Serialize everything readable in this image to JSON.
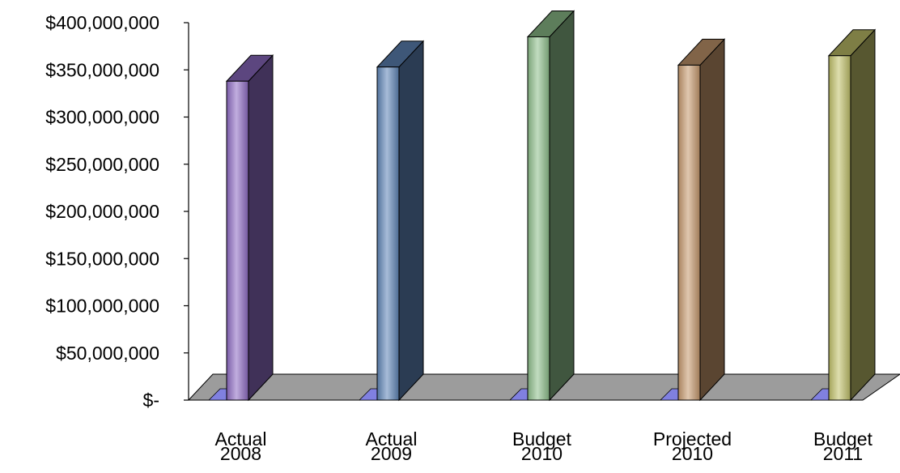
{
  "chart_data": {
    "type": "bar",
    "categories": [
      [
        "Actual",
        "2008"
      ],
      [
        "Actual",
        "2009"
      ],
      [
        "Budget",
        "2010"
      ],
      [
        "Projected",
        "2010"
      ],
      [
        "Budget",
        "2011"
      ]
    ],
    "values": [
      338000000,
      353000000,
      385000000,
      355000000,
      365000000
    ],
    "ylim": [
      0,
      400000000
    ],
    "yticks": [
      0,
      50000000,
      100000000,
      150000000,
      200000000,
      250000000,
      300000000,
      350000000,
      400000000
    ],
    "ytick_labels": [
      "$-",
      "$50,000,000",
      "$100,000,000",
      "$150,000,000",
      "$200,000,000",
      "$250,000,000",
      "$300,000,000",
      "$350,000,000",
      "$400,000,000"
    ],
    "style": "3d-column",
    "grid": false,
    "colors": {
      "bars": [
        "#8e6cc4",
        "#5f86b8",
        "#8fc08c",
        "#c79a6e",
        "#c2c26a"
      ],
      "floor": "#9c9c9c",
      "floor_stub": "#8080e0"
    }
  }
}
